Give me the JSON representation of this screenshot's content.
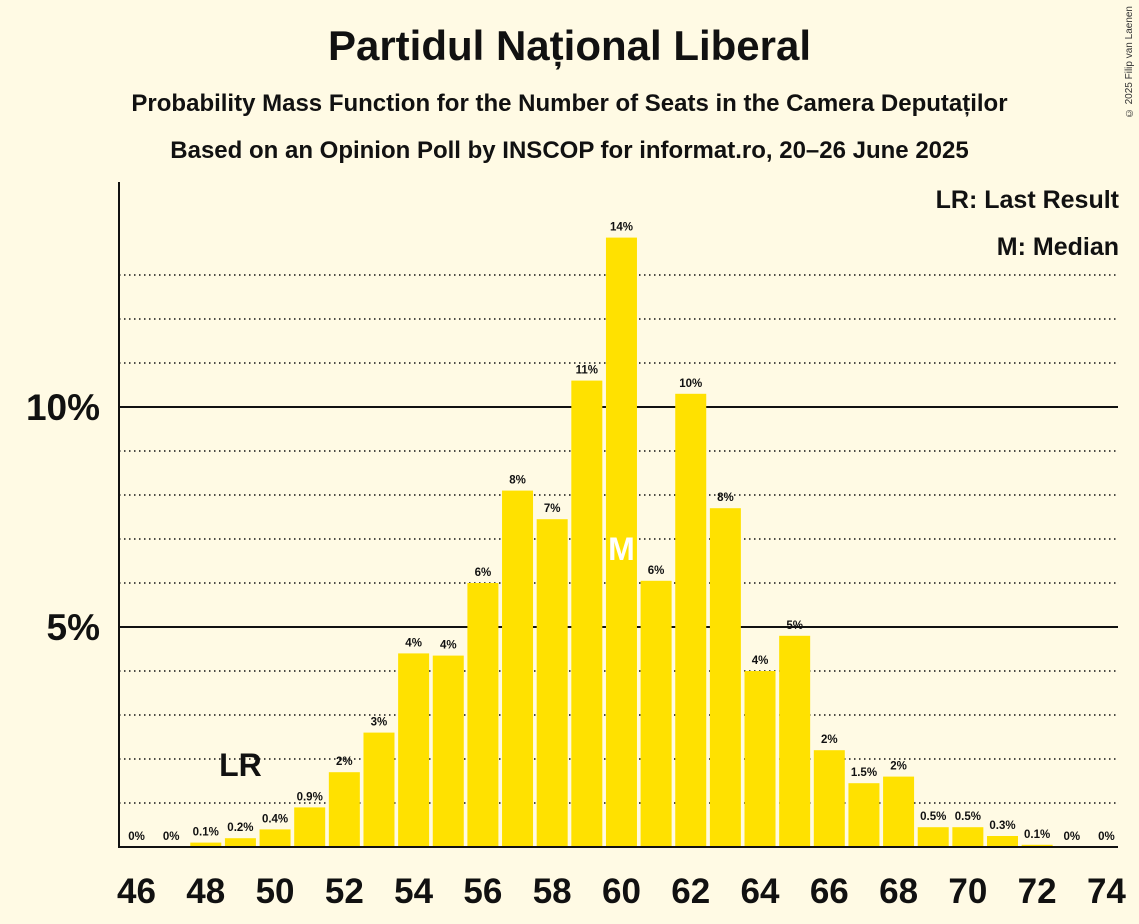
{
  "title": "Partidul Național Liberal",
  "subtitle": "Probability Mass Function for the Number of Seats in the Camera Deputaților",
  "subtitle2": "Based on an Opinion Poll by INSCOP for informat.ro, 20–26 June 2025",
  "copyright": "© 2025 Filip van Laenen",
  "legend": {
    "last_result": "LR: Last Result",
    "median": "M: Median"
  },
  "colors": {
    "bar": "#FFE100",
    "background": "#FFFAE4",
    "text": "#111111"
  },
  "chart_data": {
    "type": "bar",
    "title": "Partidul Național Liberal",
    "xlabel": "",
    "ylabel": "",
    "categories": [
      46,
      47,
      48,
      49,
      50,
      51,
      52,
      53,
      54,
      55,
      56,
      57,
      58,
      59,
      60,
      61,
      62,
      63,
      64,
      65,
      66,
      67,
      68,
      69,
      70,
      71,
      72,
      73,
      74
    ],
    "values": [
      0,
      0,
      0.1,
      0.2,
      0.4,
      0.9,
      1.7,
      2.6,
      4.4,
      4.35,
      6.0,
      8.1,
      7.45,
      10.6,
      13.85,
      6.05,
      10.3,
      7.7,
      4.0,
      4.8,
      2.2,
      1.45,
      1.6,
      0.45,
      0.45,
      0.25,
      0.05,
      0,
      0
    ],
    "data_labels": [
      "0%",
      "0%",
      "0.1%",
      "0.2%",
      "0.4%",
      "0.9%",
      "2%",
      "3%",
      "4%",
      "4%",
      "6%",
      "8%",
      "7%",
      "11%",
      "14%",
      "6%",
      "10%",
      "8%",
      "4%",
      "5%",
      "2%",
      "1.5%",
      "2%",
      "0.5%",
      "0.5%",
      "0.3%",
      "0.1%",
      "0%",
      "0%"
    ],
    "x_tick_labels": [
      "46",
      "48",
      "50",
      "52",
      "54",
      "56",
      "58",
      "60",
      "62",
      "64",
      "66",
      "68",
      "70",
      "72",
      "74"
    ],
    "y_tick_labels": [
      "5%",
      "10%"
    ],
    "y_ticks": [
      5,
      10
    ],
    "ylim": [
      0,
      15.2
    ],
    "gridlines_dotted": [
      1,
      2,
      3,
      4,
      6,
      7,
      8,
      9,
      11,
      12,
      13
    ],
    "last_result_seat": 49,
    "last_result_label": "LR",
    "median_seat": 60,
    "median_label": "M"
  }
}
